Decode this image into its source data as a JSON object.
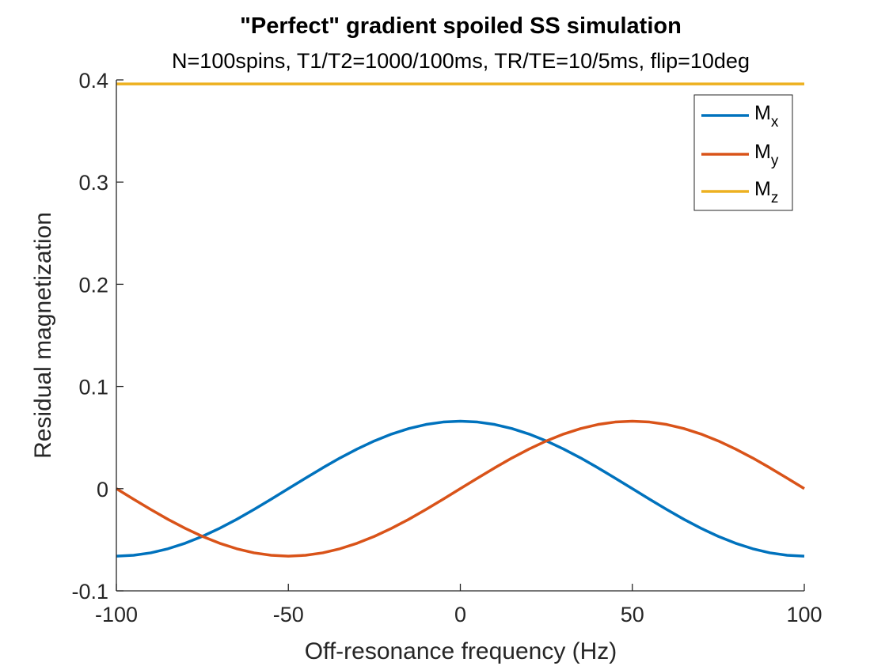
{
  "chart_data": {
    "type": "line",
    "title": "\"Perfect\" gradient spoiled SS simulation",
    "subtitle": "N=100spins, T1/T2=1000/100ms, TR/TE=10/5ms, flip=10deg",
    "xlabel": "Off-resonance frequency (Hz)",
    "ylabel": "Residual magnetization",
    "xlim": [
      -100,
      100
    ],
    "ylim": [
      -0.1,
      0.4
    ],
    "xticks": [
      -100,
      -50,
      0,
      50,
      100
    ],
    "xtick_labels": [
      "-100",
      "-50",
      "0",
      "50",
      "100"
    ],
    "yticks": [
      -0.1,
      0,
      0.1,
      0.2,
      0.3,
      0.4
    ],
    "ytick_labels": [
      "-0.1",
      "0",
      "0.1",
      "0.2",
      "0.3",
      "0.4"
    ],
    "grid": false,
    "legend_position": "top-right",
    "x": [
      -100,
      -95,
      -90,
      -85,
      -80,
      -75,
      -70,
      -65,
      -60,
      -55,
      -50,
      -45,
      -40,
      -35,
      -30,
      -25,
      -20,
      -15,
      -10,
      -5,
      0,
      5,
      10,
      15,
      20,
      25,
      30,
      35,
      40,
      45,
      50,
      55,
      60,
      65,
      70,
      75,
      80,
      85,
      90,
      95,
      100
    ],
    "series": [
      {
        "name": "Mx",
        "label_main": "M",
        "label_sub": "x",
        "color": "#0072BD",
        "values": [
          -0.066,
          -0.0652,
          -0.0628,
          -0.0588,
          -0.0534,
          -0.0467,
          -0.0388,
          -0.03,
          -0.0204,
          -0.0103,
          0,
          0.0103,
          0.0204,
          0.03,
          0.0388,
          0.0467,
          0.0534,
          0.0588,
          0.0628,
          0.0652,
          0.066,
          0.0652,
          0.0628,
          0.0588,
          0.0534,
          0.0467,
          0.0388,
          0.03,
          0.0204,
          0.0103,
          0,
          -0.0103,
          -0.0204,
          -0.03,
          -0.0388,
          -0.0467,
          -0.0534,
          -0.0588,
          -0.0628,
          -0.0652,
          -0.066
        ]
      },
      {
        "name": "My",
        "label_main": "M",
        "label_sub": "y",
        "color": "#D95319",
        "values": [
          0,
          -0.0103,
          -0.0204,
          -0.03,
          -0.0388,
          -0.0467,
          -0.0534,
          -0.0588,
          -0.0628,
          -0.0652,
          -0.066,
          -0.0652,
          -0.0628,
          -0.0588,
          -0.0534,
          -0.0467,
          -0.0388,
          -0.03,
          -0.0204,
          -0.0103,
          0,
          0.0103,
          0.0204,
          0.03,
          0.0388,
          0.0467,
          0.0534,
          0.0588,
          0.0628,
          0.0652,
          0.066,
          0.0652,
          0.0628,
          0.0588,
          0.0534,
          0.0467,
          0.0388,
          0.03,
          0.0204,
          0.0103,
          0
        ]
      },
      {
        "name": "Mz",
        "label_main": "M",
        "label_sub": "z",
        "color": "#EDB120",
        "values": [
          0.396,
          0.396,
          0.396,
          0.396,
          0.396,
          0.396,
          0.396,
          0.396,
          0.396,
          0.396,
          0.396,
          0.396,
          0.396,
          0.396,
          0.396,
          0.396,
          0.396,
          0.396,
          0.396,
          0.396,
          0.396,
          0.396,
          0.396,
          0.396,
          0.396,
          0.396,
          0.396,
          0.396,
          0.396,
          0.396,
          0.396,
          0.396,
          0.396,
          0.396,
          0.396,
          0.396,
          0.396,
          0.396,
          0.396,
          0.396,
          0.396
        ]
      }
    ]
  }
}
